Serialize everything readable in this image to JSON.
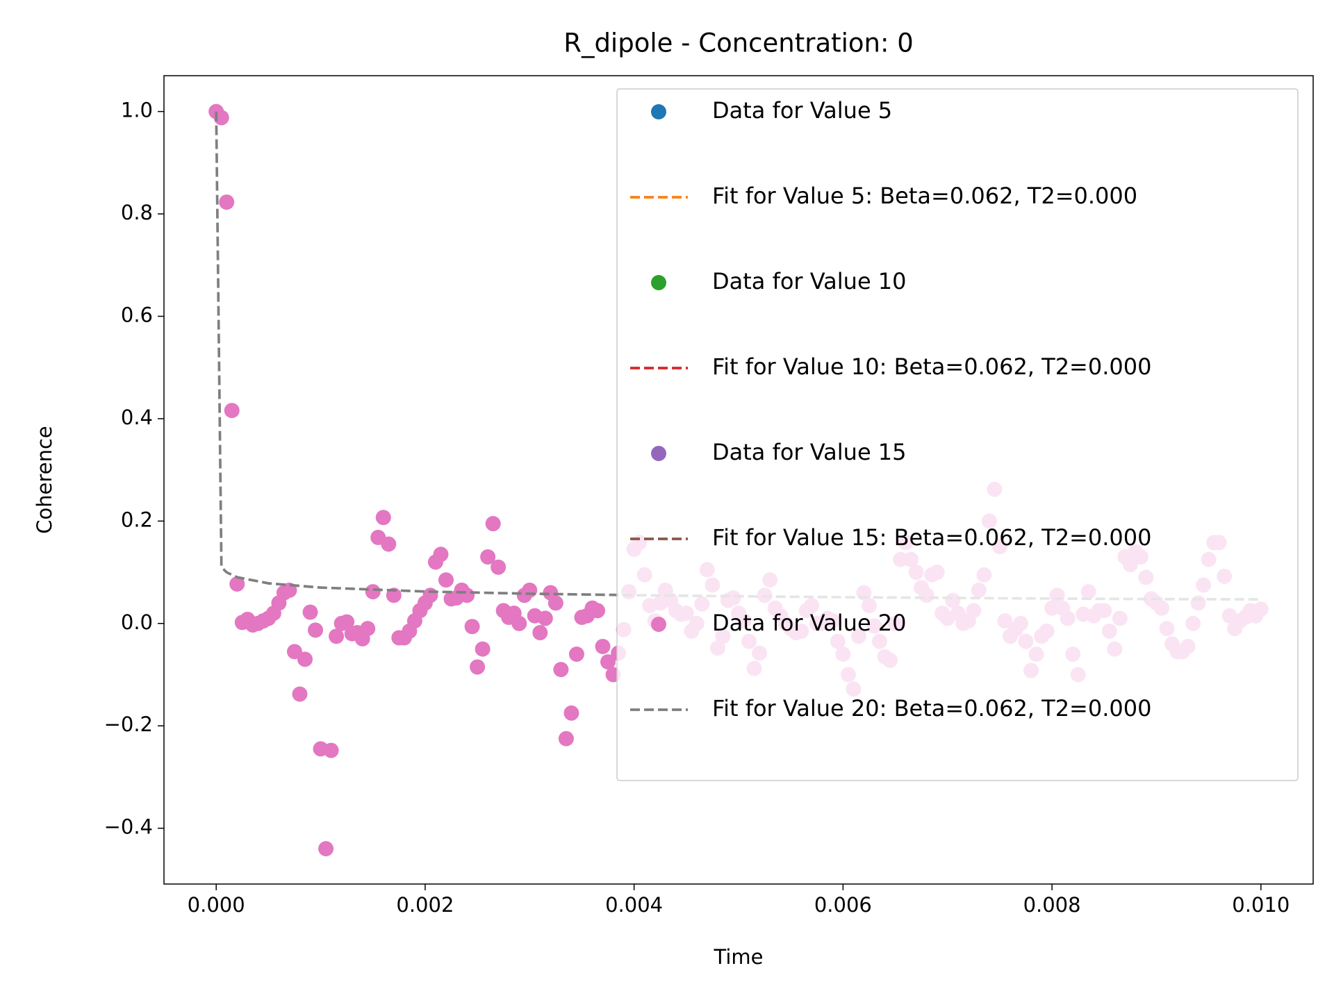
{
  "chart_data": {
    "type": "scatter",
    "title": "R_dipole - Concentration: 0",
    "x_label": "Time",
    "y_label": "Coherence",
    "xlim": [
      -0.0005,
      0.0105
    ],
    "ylim": [
      -0.509,
      1.07
    ],
    "xticks": [
      {
        "value": 0,
        "label": "0.000"
      },
      {
        "value": 0.002,
        "label": "0.002"
      },
      {
        "value": 0.004,
        "label": "0.004"
      },
      {
        "value": 0.006,
        "label": "0.006"
      },
      {
        "value": 0.008,
        "label": "0.008"
      },
      {
        "value": 0.01,
        "label": "0.010"
      }
    ],
    "yticks": [
      {
        "value": -0.4,
        "label": "−0.4"
      },
      {
        "value": -0.2,
        "label": "−0.2"
      },
      {
        "value": 0,
        "label": "0.0"
      },
      {
        "value": 0.2,
        "label": "0.2"
      },
      {
        "value": 0.4,
        "label": "0.4"
      },
      {
        "value": 0.6,
        "label": "0.6"
      },
      {
        "value": 0.8,
        "label": "0.8"
      },
      {
        "value": 1.0,
        "label": "1.0"
      }
    ],
    "legend": "upper right",
    "series": [
      {
        "name": "Data for Value 5",
        "color": "#1f77b4",
        "marker": "o"
      },
      {
        "name": "Fit for Value 5: Beta=0.062, T2=0.000",
        "color": "#ff7f0e",
        "linestyle": "--"
      },
      {
        "name": "Data for Value 10",
        "color": "#2ca02c",
        "marker": "o"
      },
      {
        "name": "Fit for Value 10: Beta=0.062, T2=0.000",
        "color": "#d62728",
        "linestyle": "--"
      },
      {
        "name": "Data for Value 15",
        "color": "#9467bd",
        "marker": "o"
      },
      {
        "name": "Fit for Value 15: Beta=0.062, T2=0.000",
        "color": "#8c564b",
        "linestyle": "--"
      },
      {
        "name": "Data for Value 20",
        "color": "#e377c2",
        "marker": "o",
        "x": [
          0,
          5e-05,
          0.0001,
          0.00015,
          0.0002,
          0.00025,
          0.0003,
          0.00035,
          0.0004,
          0.00045,
          0.0005,
          0.00055,
          0.0006,
          0.00065,
          0.0007,
          0.00075,
          0.0008,
          0.00085,
          0.0009,
          0.00095,
          0.001,
          0.00105,
          0.0011,
          0.00115,
          0.0012,
          0.00125,
          0.0013,
          0.00135,
          0.0014,
          0.00145,
          0.0015,
          0.00155,
          0.0016,
          0.00165,
          0.0017,
          0.00175,
          0.0018,
          0.00185,
          0.0019,
          0.00195,
          0.002,
          0.00205,
          0.0021,
          0.00215,
          0.0022,
          0.00225,
          0.0023,
          0.00235,
          0.0024,
          0.00245,
          0.0025,
          0.00255,
          0.0026,
          0.00265,
          0.0027,
          0.00275,
          0.0028,
          0.00285,
          0.0029,
          0.00295,
          0.003,
          0.00305,
          0.0031,
          0.00315,
          0.0032,
          0.00325,
          0.0033,
          0.00335,
          0.0034,
          0.00345,
          0.0035,
          0.00355,
          0.0036,
          0.00365,
          0.0037,
          0.00375,
          0.0038,
          0.00385,
          0.0039,
          0.00395,
          0.004,
          0.00405,
          0.0041,
          0.00415,
          0.0042,
          0.00425,
          0.0043,
          0.00435,
          0.0044,
          0.00445,
          0.0045,
          0.00455,
          0.0046,
          0.00465,
          0.0047,
          0.00475,
          0.0048,
          0.00485,
          0.0049,
          0.00495,
          0.005,
          0.00505,
          0.0051,
          0.00515,
          0.0052,
          0.00525,
          0.0053,
          0.00535,
          0.0054,
          0.00545,
          0.0055,
          0.00555,
          0.0056,
          0.00565,
          0.0057,
          0.00575,
          0.0058,
          0.00585,
          0.0059,
          0.00595,
          0.006,
          0.00605,
          0.0061,
          0.00615,
          0.0062,
          0.00625,
          0.0063,
          0.00635,
          0.0064,
          0.00645,
          0.0065,
          0.00655,
          0.0066,
          0.00665,
          0.0067,
          0.00675,
          0.0068,
          0.00685,
          0.0069,
          0.00695,
          0.007,
          0.00705,
          0.0071,
          0.00715,
          0.0072,
          0.00725,
          0.0073,
          0.00735,
          0.0074,
          0.00745,
          0.0075,
          0.00755,
          0.0076,
          0.00765,
          0.0077,
          0.00775,
          0.0078,
          0.00785,
          0.0079,
          0.00795,
          0.008,
          0.00805,
          0.0081,
          0.00815,
          0.0082,
          0.00825,
          0.0083,
          0.00835,
          0.0084,
          0.00845,
          0.0085,
          0.00855,
          0.0086,
          0.00865,
          0.0087,
          0.00875,
          0.0088,
          0.00885,
          0.0089,
          0.00895,
          0.009,
          0.00905,
          0.0091,
          0.00915,
          0.0092,
          0.00925,
          0.0093,
          0.00935,
          0.0094,
          0.00945,
          0.0095,
          0.00955,
          0.0096,
          0.00965,
          0.0097,
          0.00975,
          0.0098,
          0.00985,
          0.0099,
          0.00995,
          0.01
        ],
        "values": [
          1.0,
          0.988,
          0.823,
          0.416,
          0.077,
          0.002,
          0.008,
          -0.003,
          0.0,
          0.005,
          0.01,
          0.02,
          0.04,
          0.06,
          0.065,
          -0.055,
          -0.138,
          -0.07,
          0.022,
          -0.013,
          -0.245,
          -0.44,
          -0.248,
          -0.025,
          0.0,
          0.003,
          -0.02,
          -0.018,
          -0.03,
          -0.01,
          0.062,
          0.168,
          0.207,
          0.155,
          0.055,
          -0.028,
          -0.028,
          -0.015,
          0.005,
          0.025,
          0.04,
          0.055,
          0.12,
          0.135,
          0.085,
          0.048,
          0.05,
          0.065,
          0.055,
          -0.006,
          -0.085,
          -0.05,
          0.13,
          0.195,
          0.11,
          0.025,
          0.012,
          0.02,
          0.0,
          0.055,
          0.065,
          0.015,
          -0.018,
          0.01,
          0.06,
          0.04,
          -0.09,
          -0.225,
          -0.175,
          -0.06,
          0.012,
          0.015,
          0.03,
          0.025,
          -0.045,
          -0.075,
          -0.1,
          -0.058,
          -0.012,
          0.062,
          0.145,
          0.158,
          0.095,
          0.035,
          0.005,
          0.04,
          0.065,
          0.045,
          0.025,
          0.018,
          0.02,
          -0.015,
          0.0,
          0.038,
          0.105,
          0.075,
          -0.048,
          -0.025,
          0.045,
          0.05,
          0.02,
          0.005,
          -0.035,
          -0.088,
          -0.058,
          0.055,
          0.085,
          0.03,
          0.015,
          0.0,
          -0.01,
          -0.018,
          -0.015,
          0.025,
          0.035,
          0.0,
          0.0,
          0.01,
          0.005,
          -0.035,
          -0.06,
          -0.1,
          -0.128,
          -0.025,
          0.06,
          0.035,
          -0.005,
          -0.035,
          -0.065,
          -0.072,
          0.0,
          0.125,
          0.158,
          0.125,
          0.1,
          0.07,
          0.055,
          0.095,
          0.1,
          0.02,
          0.01,
          0.045,
          0.02,
          0.0,
          0.005,
          0.025,
          0.065,
          0.095,
          0.2,
          0.262,
          0.15,
          0.005,
          -0.025,
          -0.012,
          0.0,
          -0.035,
          -0.092,
          -0.06,
          -0.025,
          -0.015,
          0.03,
          0.055,
          0.03,
          0.01,
          -0.06,
          -0.1,
          0.018,
          0.062,
          0.015,
          0.025,
          0.025,
          -0.015,
          -0.05,
          0.01,
          0.13,
          0.115,
          0.14,
          0.13,
          0.09,
          0.048,
          0.04,
          0.03,
          -0.01,
          -0.04,
          -0.055,
          -0.055,
          -0.045,
          0.0,
          0.04,
          0.075,
          0.125,
          0.158,
          0.158,
          0.092,
          0.015,
          -0.01,
          0.005,
          0.012,
          0.025,
          0.015,
          0.028
        ]
      },
      {
        "name": "Fit for Value 20: Beta=0.062, T2=0.000",
        "color": "#7f7f7f",
        "linestyle": "--",
        "x": [
          0,
          5e-05,
          0.0001,
          0.0002,
          0.0005,
          0.001,
          0.002,
          0.003,
          0.004,
          0.005,
          0.006,
          0.007,
          0.008,
          0.009,
          0.01
        ],
        "values": [
          1.0,
          0.11,
          0.0999,
          0.0903,
          0.0784,
          0.0701,
          0.0624,
          0.0581,
          0.0552,
          0.0531,
          0.0513,
          0.0499,
          0.0486,
          0.0476,
          0.047
        ]
      }
    ]
  }
}
